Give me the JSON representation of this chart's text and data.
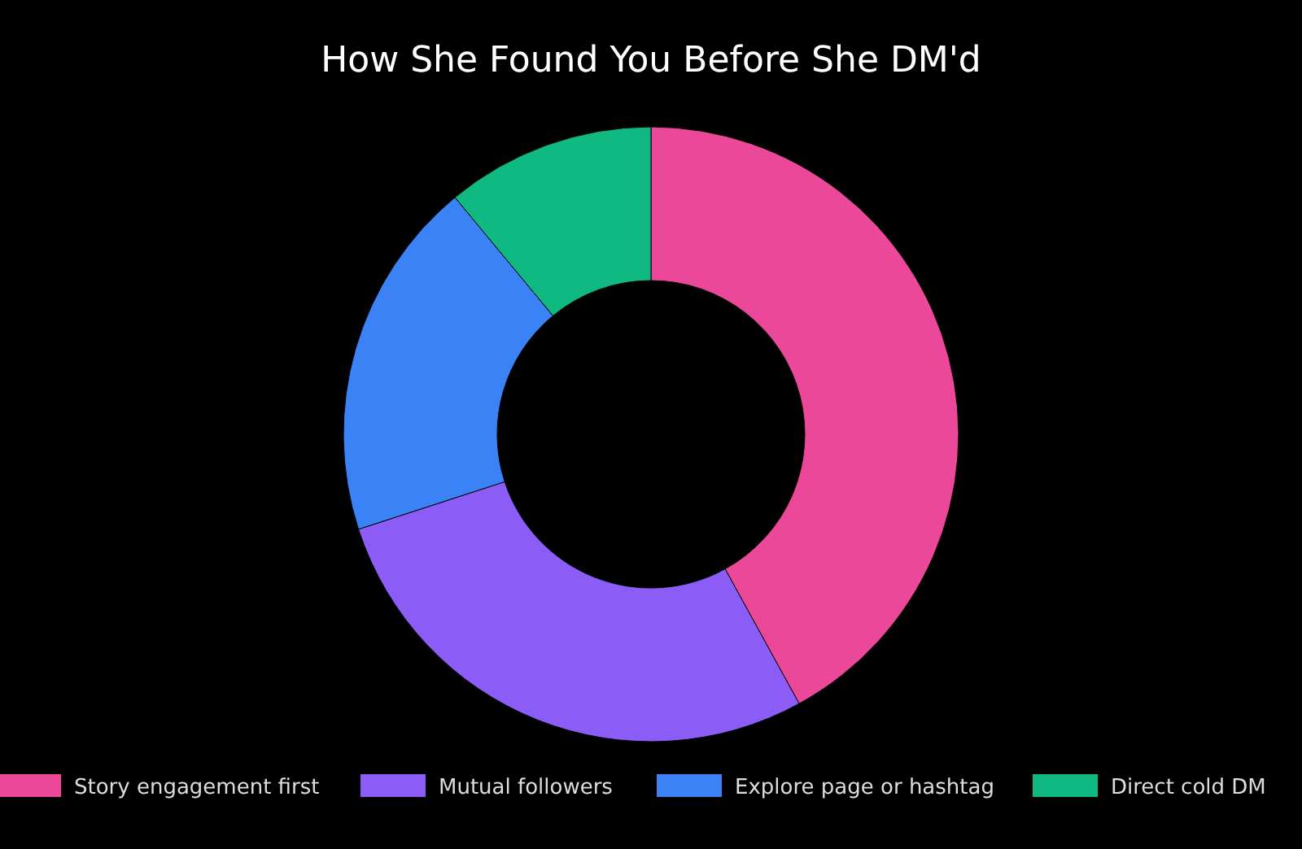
{
  "chart_data": {
    "type": "donut",
    "title": "How She Found You Before She DM'd",
    "categories": [
      "Story engagement first",
      "Mutual followers",
      "Explore page or hashtag",
      "Direct cold DM"
    ],
    "values": [
      42,
      28,
      19,
      11
    ],
    "colors": [
      "#ec4899",
      "#8b5cf6",
      "#3b82f6",
      "#10b981"
    ],
    "legend": "bottom"
  }
}
